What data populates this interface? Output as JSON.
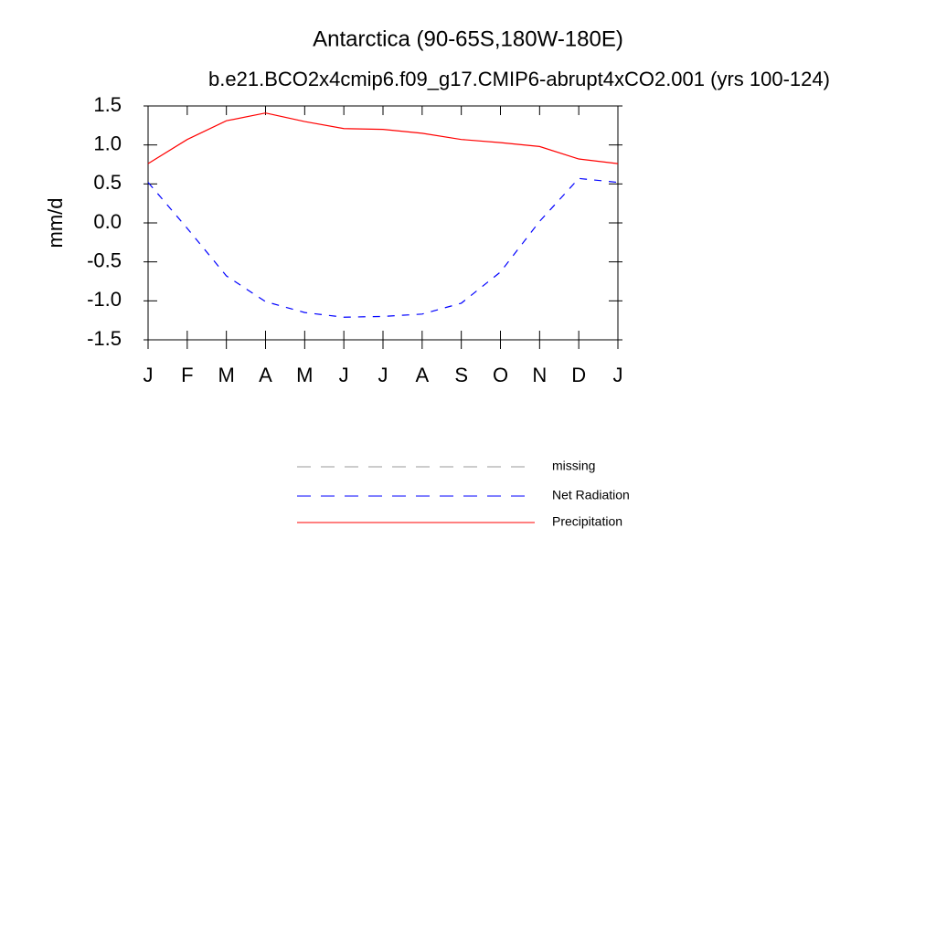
{
  "chart_data": {
    "type": "line",
    "title": "Antarctica (90-65S,180W-180E)",
    "subtitle": "b.e21.BCO2x4cmip6.f09_g17.CMIP6-abrupt4xCO2.001 (yrs 100-124)",
    "y_label": "mm/d",
    "categories": [
      "J",
      "F",
      "M",
      "A",
      "M",
      "J",
      "J",
      "A",
      "S",
      "O",
      "N",
      "D",
      "J"
    ],
    "series": [
      {
        "name": "missing",
        "color": "#999999",
        "dashed": true,
        "values": [
          null,
          null,
          null,
          null,
          null,
          null,
          null,
          null,
          null,
          null,
          null,
          null,
          null
        ]
      },
      {
        "name": "Net Radiation",
        "color": "#0000ff",
        "dashed": true,
        "values": [
          0.52,
          -0.07,
          -0.68,
          -1.01,
          -1.15,
          -1.21,
          -1.2,
          -1.17,
          -1.03,
          -0.63,
          0.02,
          0.57,
          0.52
        ]
      },
      {
        "name": "Precipitation",
        "color": "#ff0000",
        "dashed": false,
        "values": [
          0.76,
          1.07,
          1.31,
          1.41,
          1.3,
          1.21,
          1.2,
          1.15,
          1.07,
          1.03,
          0.98,
          0.82,
          0.76
        ]
      }
    ],
    "ylim": [
      -1.5,
      1.5
    ],
    "yticks": [
      {
        "value": -1.5,
        "label": "-1.5"
      },
      {
        "value": -1,
        "label": "-1.0"
      },
      {
        "value": -0.5,
        "label": "-0.5"
      },
      {
        "value": 0,
        "label": "0.0"
      },
      0.5,
      {
        "value": 1,
        "label": "1.0"
      },
      1.5
    ]
  }
}
